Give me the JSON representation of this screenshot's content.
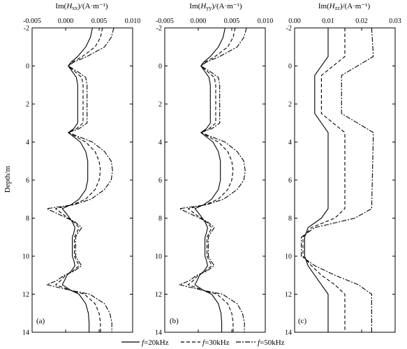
{
  "chart_data": [
    {
      "type": "line",
      "panel_label": "(a)",
      "xlabel_parts": {
        "pre": "Im(",
        "var": "H",
        "sub": "xx",
        "post": ")/(A·m⁻¹)"
      },
      "xlim": [
        -0.005,
        0.01
      ],
      "xticks": [
        -0.005,
        0.0,
        0.005,
        0.01
      ],
      "xtick_labels": [
        "-0.005",
        "0.000",
        "0.005",
        "0.010"
      ],
      "ylim": [
        -2,
        14
      ],
      "y": [
        -2,
        -1.5,
        -1,
        -0.5,
        -0.2,
        0,
        0.3,
        0.6,
        1,
        1.5,
        2,
        2.5,
        3,
        3.3,
        3.5,
        4,
        4.5,
        5,
        5.5,
        6,
        6.5,
        7,
        7.3,
        7.5,
        7.8,
        8,
        8.2,
        8.5,
        8.8,
        9,
        9.5,
        10,
        10.2,
        10.5,
        10.8,
        11,
        11.3,
        11.5,
        11.8,
        12,
        12.5,
        13,
        13.5,
        14
      ],
      "series": [
        {
          "legend_index": 0,
          "values": [
            0.004,
            0.0037,
            0.003,
            0.0018,
            0.0008,
            0.0004,
            0.001,
            0.0016,
            0.0018,
            0.0018,
            0.0018,
            0.0018,
            0.0018,
            0.0012,
            0.0004,
            0.0022,
            0.003,
            0.0033,
            0.0033,
            0.0033,
            0.003,
            0.002,
            0.0008,
            -0.0005,
            0.0002,
            0.0006,
            0.001,
            0.0014,
            0.0012,
            0.001,
            0.001,
            0.001,
            0.0012,
            0.0014,
            0.0008,
            0.0002,
            -0.0002,
            -0.0005,
            0.0008,
            0.002,
            0.003,
            0.0034,
            0.0035,
            0.0035
          ]
        },
        {
          "legend_index": 1,
          "values": [
            0.0055,
            0.0052,
            0.0044,
            0.0025,
            0.001,
            0.0004,
            0.0014,
            0.0024,
            0.0026,
            0.0026,
            0.0026,
            0.0026,
            0.0026,
            0.0016,
            0.0004,
            0.003,
            0.0044,
            0.005,
            0.0052,
            0.005,
            0.0044,
            0.003,
            0.001,
            -0.0015,
            -0.0004,
            0.0004,
            0.0012,
            0.002,
            0.0016,
            0.0013,
            0.0013,
            0.0013,
            0.0016,
            0.002,
            0.001,
            0.0,
            -0.0008,
            -0.0015,
            0.0008,
            0.0028,
            0.0044,
            0.005,
            0.0052,
            0.0052
          ]
        },
        {
          "legend_index": 2,
          "values": [
            0.0072,
            0.0068,
            0.0058,
            0.0032,
            0.0012,
            0.0004,
            0.0018,
            0.003,
            0.0032,
            0.0032,
            0.0032,
            0.0032,
            0.0032,
            0.002,
            0.0004,
            0.004,
            0.0058,
            0.0068,
            0.007,
            0.0068,
            0.0058,
            0.0038,
            0.0012,
            -0.0028,
            -0.001,
            0.0002,
            0.0014,
            0.0024,
            0.0018,
            0.0015,
            0.0015,
            0.0015,
            0.0018,
            0.0024,
            0.0012,
            -0.0002,
            -0.0014,
            -0.0028,
            0.0008,
            0.0036,
            0.0058,
            0.0066,
            0.0069,
            0.0069
          ]
        }
      ]
    },
    {
      "type": "line",
      "panel_label": "(b)",
      "xlabel_parts": {
        "pre": "Im(",
        "var": "H",
        "sub": "yy",
        "post": ")/(A·m⁻¹)"
      },
      "xlim": [
        -0.005,
        0.01
      ],
      "xticks": [
        -0.005,
        0.0,
        0.005,
        0.01
      ],
      "xtick_labels": [
        "-0.005",
        "0.000",
        "0.005",
        "0.010"
      ],
      "ylim": [
        -2,
        14
      ],
      "y": [
        -2,
        -1.5,
        -1,
        -0.5,
        -0.2,
        0,
        0.3,
        0.6,
        1,
        1.5,
        2,
        2.5,
        3,
        3.3,
        3.5,
        4,
        4.5,
        5,
        5.5,
        6,
        6.5,
        7,
        7.3,
        7.5,
        7.8,
        8,
        8.2,
        8.5,
        8.8,
        9,
        9.5,
        10,
        10.2,
        10.5,
        10.8,
        11,
        11.3,
        11.5,
        11.8,
        12,
        12.5,
        13,
        13.5,
        14
      ],
      "series": [
        {
          "legend_index": 0,
          "values": [
            0.004,
            0.0037,
            0.003,
            0.0018,
            0.0008,
            0.0004,
            0.001,
            0.0016,
            0.0018,
            0.0018,
            0.0018,
            0.0018,
            0.0018,
            0.0012,
            0.0004,
            0.0022,
            0.003,
            0.0033,
            0.0033,
            0.0033,
            0.003,
            0.002,
            0.0008,
            -0.0005,
            0.0002,
            0.0006,
            0.001,
            0.0014,
            0.0012,
            0.001,
            0.001,
            0.001,
            0.0012,
            0.0014,
            0.0008,
            0.0002,
            -0.0002,
            -0.0005,
            0.0008,
            0.002,
            0.003,
            0.0034,
            0.0035,
            0.0035
          ]
        },
        {
          "legend_index": 1,
          "values": [
            0.0055,
            0.0052,
            0.0044,
            0.0025,
            0.001,
            0.0004,
            0.0014,
            0.0024,
            0.0026,
            0.0026,
            0.0026,
            0.0026,
            0.0026,
            0.0016,
            0.0004,
            0.003,
            0.0044,
            0.005,
            0.0052,
            0.005,
            0.0044,
            0.003,
            0.001,
            -0.0015,
            -0.0004,
            0.0004,
            0.0012,
            0.002,
            0.0016,
            0.0013,
            0.0013,
            0.0013,
            0.0016,
            0.002,
            0.001,
            0.0,
            -0.0008,
            -0.0015,
            0.0008,
            0.0028,
            0.0044,
            0.005,
            0.0052,
            0.0052
          ]
        },
        {
          "legend_index": 2,
          "values": [
            0.0072,
            0.0068,
            0.0058,
            0.0032,
            0.0012,
            0.0004,
            0.0018,
            0.003,
            0.0032,
            0.0032,
            0.0032,
            0.0032,
            0.0032,
            0.002,
            0.0004,
            0.004,
            0.0058,
            0.0068,
            0.007,
            0.0068,
            0.0058,
            0.0038,
            0.0012,
            -0.0028,
            -0.001,
            0.0002,
            0.0014,
            0.0024,
            0.0018,
            0.0015,
            0.0015,
            0.0015,
            0.0018,
            0.0024,
            0.0012,
            -0.0002,
            -0.0014,
            -0.0028,
            0.0008,
            0.0036,
            0.0058,
            0.0066,
            0.0069,
            0.0069
          ]
        }
      ]
    },
    {
      "type": "line",
      "panel_label": "(c)",
      "xlabel_parts": {
        "pre": "Im(",
        "var": "H",
        "sub": "zz",
        "post": ")/(A·m⁻¹)"
      },
      "xlim": [
        0.0,
        0.03
      ],
      "xticks": [
        0.0,
        0.01,
        0.02,
        0.03
      ],
      "xtick_labels": [
        "0.00",
        "0.01",
        "0.02",
        "0.03"
      ],
      "ylim": [
        -2,
        14
      ],
      "y": [
        -2,
        -0.5,
        0.5,
        2.5,
        3.5,
        7.5,
        8,
        8.5,
        9,
        10,
        10.5,
        11,
        11.5,
        12,
        14
      ],
      "series": [
        {
          "legend_index": 0,
          "values": [
            0.01,
            0.01,
            0.006,
            0.006,
            0.01,
            0.01,
            0.008,
            0.004,
            0.003,
            0.003,
            0.004,
            0.006,
            0.008,
            0.01,
            0.01
          ]
        },
        {
          "legend_index": 1,
          "values": [
            0.015,
            0.015,
            0.008,
            0.008,
            0.015,
            0.015,
            0.012,
            0.005,
            0.0025,
            0.0025,
            0.005,
            0.008,
            0.012,
            0.015,
            0.015
          ]
        },
        {
          "legend_index": 2,
          "values": [
            0.023,
            0.0235,
            0.014,
            0.014,
            0.0235,
            0.023,
            0.018,
            0.006,
            0.002,
            0.002,
            0.006,
            0.012,
            0.019,
            0.023,
            0.023
          ]
        }
      ]
    }
  ],
  "yaxis": {
    "label": "Depth/m",
    "ticks": [
      -2,
      0,
      2,
      4,
      6,
      8,
      10,
      12,
      14
    ],
    "tick_labels": [
      "-2",
      "0",
      "2",
      "4",
      "6",
      "8",
      "10",
      "12",
      "14"
    ]
  },
  "legend": {
    "placement": "bottom-center",
    "entries": [
      {
        "var": "f",
        "text": "=20kHz",
        "dash": "solid"
      },
      {
        "var": "f",
        "text": "=30kHz",
        "dash": "dashed"
      },
      {
        "var": "f",
        "text": "=50kHz",
        "dash": "dashdot"
      }
    ]
  },
  "colors": {
    "line": "#000000",
    "background": "#ffffff"
  }
}
